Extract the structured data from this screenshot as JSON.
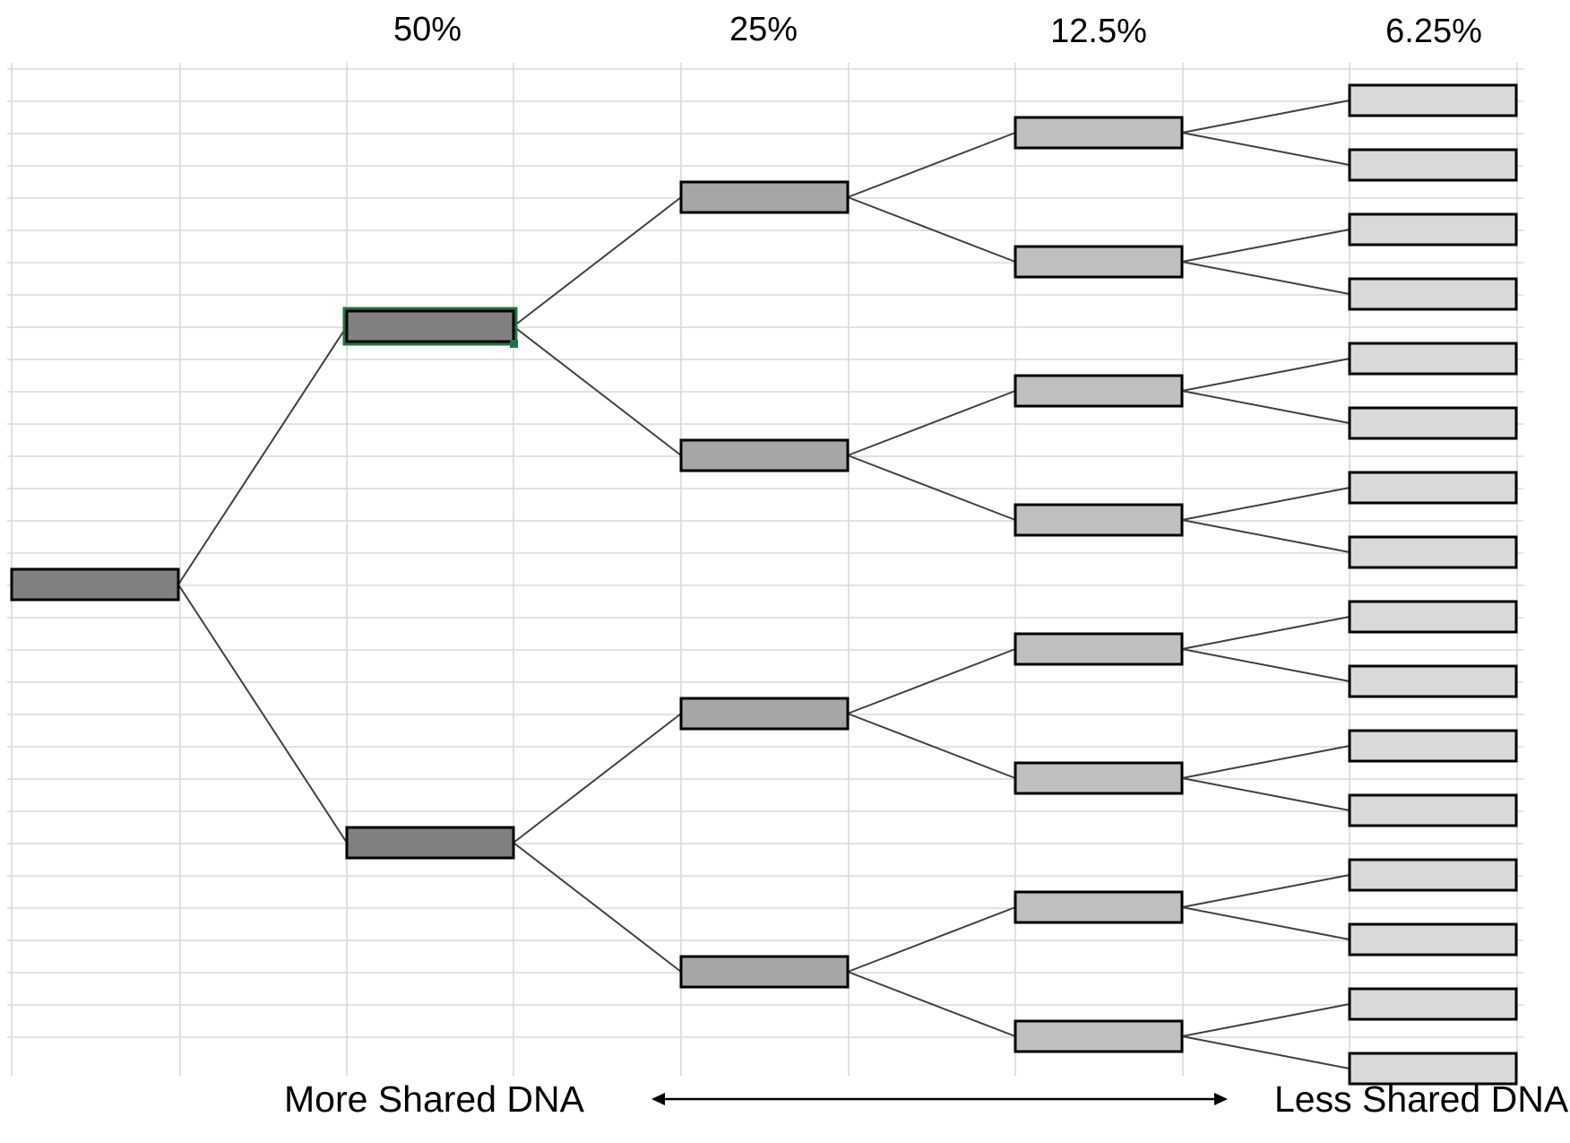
{
  "header": {
    "generation_percents": [
      "50%",
      "25%",
      "12.5%",
      "6.25%"
    ]
  },
  "footer": {
    "left_label": "More Shared DNA",
    "right_label": "Less Shared DNA"
  },
  "tree": {
    "generations": [
      1,
      2,
      4,
      8,
      16
    ],
    "fill_colors": [
      "#808080",
      "#808080",
      "#a6a6a6",
      "#bfbfbf",
      "#d9d9d9"
    ],
    "selected_box": "generation-1-upper",
    "selection_color": "#217346"
  },
  "colors": {
    "gridline": "#d9d9d9",
    "connector": "#404040",
    "box_border": "#000000"
  }
}
